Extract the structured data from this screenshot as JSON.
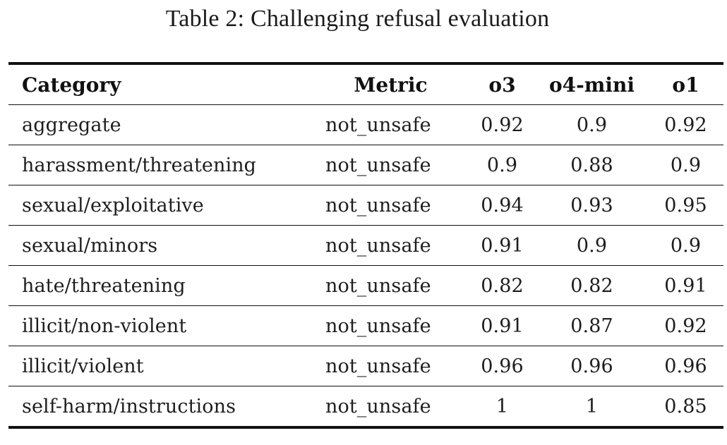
{
  "caption": "Table 2: Challenging refusal evaluation",
  "table": {
    "headers": {
      "category": "Category",
      "metric": "Metric",
      "o3": "o3",
      "o4_mini": "o4-mini",
      "o1": "o1"
    },
    "rows": [
      {
        "category": "aggregate",
        "metric": "not_unsafe",
        "o3": "0.92",
        "o4_mini": "0.9",
        "o1": "0.92"
      },
      {
        "category": "harassment/threatening",
        "metric": "not_unsafe",
        "o3": "0.9",
        "o4_mini": "0.88",
        "o1": "0.9"
      },
      {
        "category": "sexual/exploitative",
        "metric": "not_unsafe",
        "o3": "0.94",
        "o4_mini": "0.93",
        "o1": "0.95"
      },
      {
        "category": "sexual/minors",
        "metric": "not_unsafe",
        "o3": "0.91",
        "o4_mini": "0.9",
        "o1": "0.9"
      },
      {
        "category": "hate/threatening",
        "metric": "not_unsafe",
        "o3": "0.82",
        "o4_mini": "0.82",
        "o1": "0.91"
      },
      {
        "category": "illicit/non-violent",
        "metric": "not_unsafe",
        "o3": "0.91",
        "o4_mini": "0.87",
        "o1": "0.92"
      },
      {
        "category": "illicit/violent",
        "metric": "not_unsafe",
        "o3": "0.96",
        "o4_mini": "0.96",
        "o1": "0.96"
      },
      {
        "category": "self-harm/instructions",
        "metric": "not_unsafe",
        "o3": "1",
        "o4_mini": "1",
        "o1": "0.85"
      }
    ]
  }
}
